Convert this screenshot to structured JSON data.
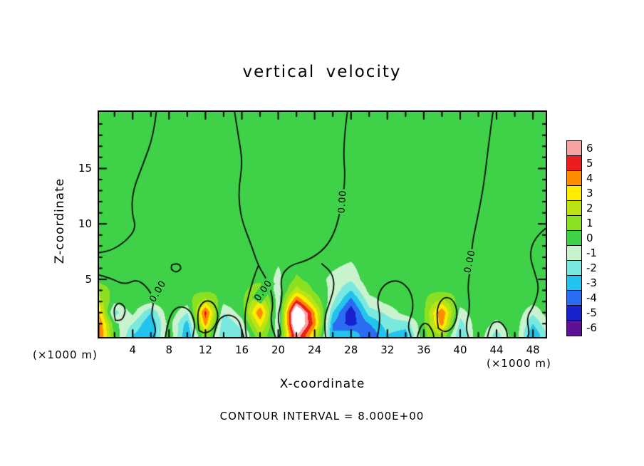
{
  "title": "vertical velocity",
  "footer_text": "CONTOUR INTERVAL = 8.000E+00",
  "colors": {
    "background_green": "#3fd148",
    "contour_line": "#000000",
    "extreme_high": "#ffffff",
    "frame": "#000000"
  },
  "chart_data": {
    "type": "heatmap",
    "subtype": "filled-contour",
    "title": "vertical velocity",
    "xlabel": "X-coordinate",
    "ylabel": "Z-coordinate",
    "x_unit_label": "(×1000 m)",
    "y_unit_label": "(×1000 m)",
    "contour_interval_text": "CONTOUR INTERVAL = 8.000E+00",
    "xlim": [
      0.3,
      49.4
    ],
    "ylim": [
      -0.2,
      20.1
    ],
    "x_ticks": [
      4,
      8,
      12,
      16,
      20,
      24,
      28,
      32,
      36,
      40,
      44,
      48
    ],
    "y_ticks": [
      5,
      10,
      15
    ],
    "x_minor_step": 2,
    "y_minor_step": 1,
    "legend_position": "right",
    "grid": false,
    "colorbar": {
      "tick_labels": [
        "6",
        "5",
        "4",
        "3",
        "2",
        "1",
        "0",
        "-1",
        "-2",
        "-3",
        "-4",
        "-5",
        "-6"
      ],
      "cell_colors": [
        "#f4a2a2",
        "#ee1c1c",
        "#ff8c00",
        "#ffec00",
        "#bce414",
        "#8ce022",
        "#3fd148",
        "#c9f2cf",
        "#79e9e0",
        "#22c4ee",
        "#2a6cf2",
        "#1722cc",
        "#5c1196"
      ]
    },
    "field_palette": [
      "#f4a2a2",
      "#ee1c1c",
      "#ff8c00",
      "#ffec00",
      "#bce414",
      "#8ce022",
      "#3fd148",
      "#c9f2cf",
      "#79e9e0",
      "#22c4ee",
      "#2a6cf2",
      "#1722cc",
      "#5c1196",
      "#ffffff"
    ],
    "field_thresholds": [
      6,
      5,
      4,
      3,
      2,
      1,
      0,
      -1,
      -2,
      -3,
      -4,
      -5
    ],
    "field": {
      "x": [
        0,
        2,
        4,
        6,
        8,
        10,
        12,
        14,
        16,
        18,
        20,
        22,
        24,
        26,
        28,
        30,
        32,
        34,
        36,
        38,
        40,
        42,
        44,
        46,
        48,
        50
      ],
      "z": [
        0,
        1,
        2,
        3,
        4,
        5,
        7,
        10,
        14,
        20
      ],
      "values": [
        [
          6,
          0.8,
          -2,
          -3,
          0.8,
          -3,
          2,
          -2,
          -1.5,
          2,
          -0.5,
          7,
          3,
          -3,
          -2,
          -4,
          -2,
          -2.5,
          0.8,
          2,
          -2,
          0.8,
          -1.5,
          0.8,
          -3,
          -0.5
        ],
        [
          6,
          0.3,
          -1,
          -3,
          0.5,
          -2.5,
          4.5,
          -2,
          -0.5,
          3.5,
          -0.8,
          9,
          4.5,
          -3,
          -4.5,
          -3,
          -1.5,
          -1.5,
          0.8,
          4.5,
          -1.5,
          0.8,
          -0.3,
          0.8,
          -2,
          0.3
        ],
        [
          5,
          -1.5,
          0.3,
          -2,
          0.8,
          -1,
          5.5,
          -1,
          0.5,
          5,
          -0.8,
          9,
          4,
          -2,
          -4.8,
          -1.5,
          -0.8,
          0.5,
          0.8,
          5,
          -0.5,
          0.8,
          0.5,
          0.8,
          -0.8,
          0.8
        ],
        [
          3,
          0.3,
          0.8,
          0.3,
          0.8,
          0.5,
          2.5,
          0.3,
          0.8,
          3,
          -0.5,
          5.5,
          2,
          -0.8,
          -3.5,
          -0.5,
          0.3,
          0.8,
          0.8,
          2.5,
          0.5,
          0.8,
          0.8,
          0.8,
          0.3,
          0.8
        ],
        [
          1.5,
          0.8,
          0.8,
          0.8,
          0.8,
          0.8,
          0.8,
          0.8,
          0.8,
          1.5,
          -0.5,
          2.5,
          0.8,
          -0.3,
          -2,
          0.3,
          0.8,
          0.8,
          0.8,
          0.8,
          0.8,
          0.8,
          0.8,
          0.8,
          0.8,
          0.8
        ],
        [
          0.8,
          0.8,
          0.8,
          0.8,
          0.8,
          0.8,
          0.8,
          0.8,
          0.8,
          0.8,
          -0.3,
          1.2,
          0.5,
          -0.3,
          -0.8,
          0.8,
          0.8,
          0.8,
          0.8,
          0.8,
          0.8,
          0.8,
          0.8,
          0.8,
          0.8,
          0.8
        ],
        [
          0.8,
          0.8,
          0.8,
          0.8,
          0.8,
          0.8,
          0.8,
          0.8,
          0.8,
          0.8,
          0.2,
          0.3,
          0.8,
          0.5,
          0.2,
          0.8,
          0.8,
          0.8,
          0.8,
          0.8,
          0.8,
          0.8,
          0.8,
          0.8,
          0.8,
          0.8
        ],
        [
          0.8,
          0.8,
          0.8,
          0.8,
          0.8,
          0.8,
          0.8,
          0.8,
          0.8,
          0.8,
          0.5,
          0.5,
          0.8,
          0.8,
          0.8,
          0.8,
          0.8,
          0.8,
          0.8,
          0.8,
          0.8,
          0.8,
          0.8,
          0.8,
          0.8,
          0.8
        ],
        [
          0.8,
          0.8,
          0.8,
          0.8,
          0.8,
          0.8,
          0.8,
          0.8,
          0.8,
          0.8,
          0.8,
          0.8,
          0.8,
          0.8,
          0.8,
          0.8,
          0.8,
          0.8,
          0.8,
          0.8,
          0.8,
          0.8,
          0.8,
          0.8,
          0.8,
          0.8
        ],
        [
          0.8,
          0.8,
          0.8,
          0.8,
          0.8,
          0.8,
          0.8,
          0.8,
          0.8,
          0.8,
          0.8,
          0.8,
          0.8,
          0.8,
          0.8,
          0.8,
          0.8,
          0.8,
          0.8,
          0.8,
          0.8,
          0.8,
          0.8,
          0.8,
          0.8,
          0.8
        ]
      ]
    },
    "zero_contours": [
      [
        [
          6.6,
          20.1
        ],
        [
          6.3,
          18
        ],
        [
          5.2,
          15.5
        ],
        [
          4.0,
          13
        ],
        [
          3.9,
          11
        ],
        [
          4.4,
          9.6
        ],
        [
          3.2,
          8.4
        ],
        [
          1.6,
          7.6
        ],
        [
          0.3,
          7.4
        ]
      ],
      [
        [
          0.3,
          5.4
        ],
        [
          1.6,
          5.1
        ],
        [
          3.1,
          4.5
        ],
        [
          4.4,
          5.0
        ],
        [
          5.5,
          4.4
        ],
        [
          6.4,
          3.2
        ],
        [
          6.0,
          1.8
        ],
        [
          6.6,
          0.5
        ],
        [
          6.3,
          -0.2
        ]
      ],
      [
        [
          2.1,
          1.3
        ],
        [
          1.8,
          2.3
        ],
        [
          2.5,
          3.0
        ],
        [
          3.3,
          2.4
        ],
        [
          2.9,
          1.3
        ],
        [
          2.1,
          1.3
        ]
      ],
      [
        [
          8.3,
          6.3
        ],
        [
          9.0,
          6.5
        ],
        [
          9.4,
          6.0
        ],
        [
          8.8,
          5.6
        ],
        [
          8.2,
          5.9
        ],
        [
          8.3,
          6.3
        ]
      ],
      [
        [
          7.6,
          -0.2
        ],
        [
          7.9,
          1.4
        ],
        [
          8.8,
          2.6
        ],
        [
          10.2,
          2.4
        ],
        [
          10.9,
          1.1
        ],
        [
          10.6,
          -0.2
        ]
      ],
      [
        [
          11.3,
          0.4
        ],
        [
          11.0,
          1.8
        ],
        [
          11.7,
          3.1
        ],
        [
          12.9,
          3.0
        ],
        [
          13.5,
          1.7
        ],
        [
          12.9,
          0.5
        ],
        [
          11.9,
          0.1
        ],
        [
          11.3,
          0.4
        ]
      ],
      [
        [
          12.9,
          -0.2
        ],
        [
          13.2,
          1.2
        ],
        [
          14.3,
          1.9
        ],
        [
          15.6,
          1.5
        ],
        [
          16.0,
          0.4
        ],
        [
          16.2,
          -0.2
        ]
      ],
      [
        [
          15.2,
          20.1
        ],
        [
          15.6,
          18
        ],
        [
          16.1,
          15.5
        ],
        [
          15.6,
          13
        ],
        [
          15.9,
          10.5
        ],
        [
          17.0,
          8.2
        ],
        [
          17.8,
          6.2
        ],
        [
          18.9,
          4.8
        ],
        [
          19.5,
          3.0
        ],
        [
          19.1,
          1.2
        ],
        [
          19.7,
          -0.2
        ]
      ],
      [
        [
          16.5,
          -0.2
        ],
        [
          16.2,
          1.6
        ],
        [
          16.8,
          3.8
        ],
        [
          17.5,
          5.6
        ],
        [
          17.8,
          6.2
        ]
      ],
      [
        [
          27.6,
          20.1
        ],
        [
          27.1,
          17
        ],
        [
          27.4,
          14
        ],
        [
          26.9,
          11.5
        ],
        [
          26.3,
          9.4
        ],
        [
          25.2,
          7.8
        ],
        [
          23.3,
          6.7
        ],
        [
          21.3,
          6.3
        ],
        [
          20.2,
          5.2
        ],
        [
          20.5,
          3.4
        ],
        [
          19.9,
          1.6
        ],
        [
          20.3,
          0.2
        ],
        [
          20.1,
          -0.2
        ]
      ],
      [
        [
          25.2,
          -0.2
        ],
        [
          25.0,
          1.4
        ],
        [
          25.7,
          3.0
        ],
        [
          26.2,
          4.4
        ],
        [
          25.9,
          5.6
        ],
        [
          24.8,
          6.4
        ]
      ],
      [
        [
          30.9,
          -0.2
        ],
        [
          31.3,
          1.4
        ],
        [
          30.8,
          3.2
        ],
        [
          31.6,
          4.6
        ],
        [
          33.2,
          5.0
        ],
        [
          34.6,
          4.0
        ],
        [
          34.9,
          2.3
        ],
        [
          34.2,
          0.9
        ],
        [
          34.6,
          -0.2
        ]
      ],
      [
        [
          43.6,
          20.1
        ],
        [
          43.1,
          17
        ],
        [
          42.6,
          13.5
        ],
        [
          41.9,
          10.5
        ],
        [
          41.3,
          8.2
        ],
        [
          41.2,
          6.3
        ],
        [
          40.8,
          4.4
        ],
        [
          41.1,
          2.4
        ],
        [
          40.6,
          0.8
        ],
        [
          40.9,
          -0.2
        ]
      ],
      [
        [
          37.6,
          0.6
        ],
        [
          37.3,
          2.0
        ],
        [
          38.0,
          3.4
        ],
        [
          39.2,
          3.3
        ],
        [
          39.8,
          1.9
        ],
        [
          39.2,
          0.6
        ],
        [
          38.3,
          0.2
        ],
        [
          37.6,
          0.6
        ]
      ],
      [
        [
          49.4,
          9.6
        ],
        [
          48.2,
          8.8
        ],
        [
          47.6,
          7.2
        ],
        [
          48.2,
          5.6
        ],
        [
          48.7,
          4.2
        ],
        [
          48.1,
          2.6
        ],
        [
          47.3,
          1.6
        ],
        [
          47.6,
          0.2
        ],
        [
          47.4,
          -0.2
        ]
      ],
      [
        [
          43.0,
          -0.2
        ],
        [
          43.3,
          1.0
        ],
        [
          44.3,
          1.3
        ],
        [
          45.1,
          0.5
        ],
        [
          45.2,
          -0.2
        ]
      ],
      [
        [
          35.3,
          -0.2
        ],
        [
          35.6,
          0.9
        ],
        [
          36.4,
          1.1
        ],
        [
          37.0,
          0.3
        ],
        [
          37.1,
          -0.2
        ]
      ]
    ],
    "contour_labels": [
      {
        "text": "0.00",
        "x": 6.8,
        "z": 3.9,
        "rot": -60
      },
      {
        "text": "0.00",
        "x": 18.4,
        "z": 4.0,
        "rot": -55
      },
      {
        "text": "0.00",
        "x": 27.1,
        "z": 12.0,
        "rot": -86
      },
      {
        "text": "0.00",
        "x": 41.1,
        "z": 6.6,
        "rot": -78
      }
    ]
  }
}
